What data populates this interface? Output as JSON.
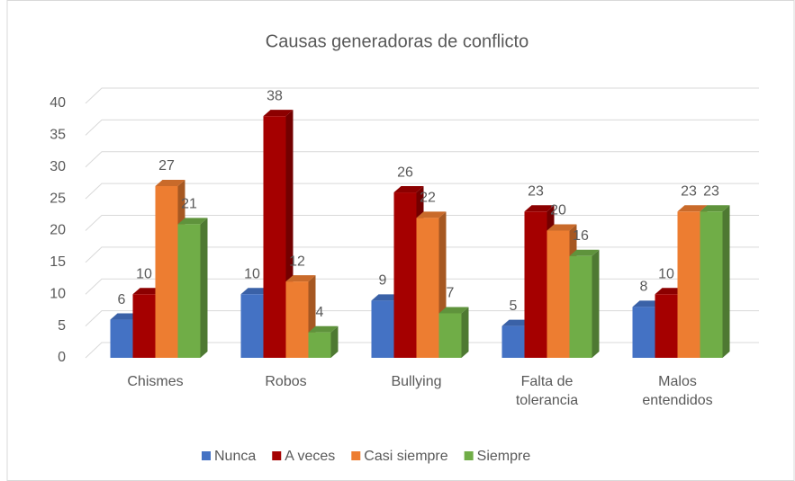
{
  "chart_data": {
    "type": "bar3d",
    "title": "Causas generadoras de conflicto",
    "categories": [
      "Chismes",
      "Robos",
      "Bullying",
      "Falta de tolerancia",
      "Malos entendidos"
    ],
    "series": [
      {
        "name": "Nunca",
        "color": "#4472c4",
        "values": [
          6,
          10,
          9,
          5,
          8
        ]
      },
      {
        "name": "A veces",
        "color": "#a50000",
        "values": [
          10,
          38,
          26,
          23,
          10
        ]
      },
      {
        "name": "Casi siempre",
        "color": "#ed7d31",
        "values": [
          27,
          12,
          22,
          20,
          23
        ]
      },
      {
        "name": "Siempre",
        "color": "#70ad47",
        "values": [
          21,
          4,
          7,
          16,
          23
        ]
      }
    ],
    "ylim": [
      0,
      40
    ],
    "yticks": [
      0,
      5,
      10,
      15,
      20,
      25,
      30,
      35,
      40
    ],
    "grid": true,
    "legend": "bottom"
  }
}
